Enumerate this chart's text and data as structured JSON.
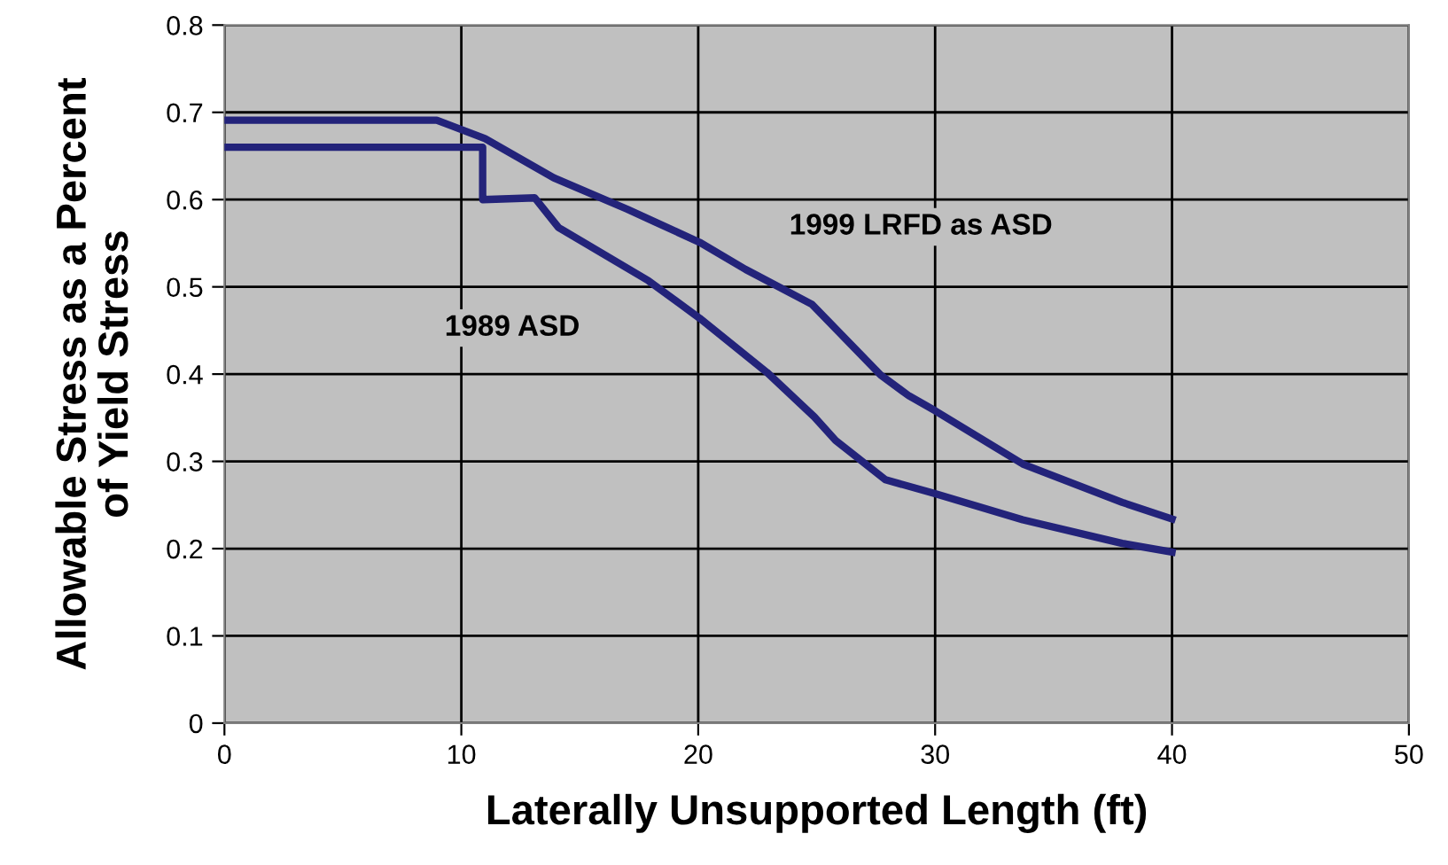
{
  "chart_data": {
    "type": "line",
    "xlabel": "Laterally Unsupported Length (ft)",
    "ylabel": "Allowable Stress as a Percent\nof Yield Stress",
    "series": [
      {
        "color": "#23237a",
        "x": [
          0,
          8.96,
          11,
          13.9,
          17,
          20.06,
          22,
          24.8,
          27.7,
          28.9,
          30,
          33.7,
          37.9,
          40
        ],
        "values": [
          0.691,
          0.691,
          0.67,
          0.625,
          0.589,
          0.551,
          0.52,
          0.48,
          0.399,
          0.375,
          0.358,
          0.297,
          0.253,
          0.234
        ]
      },
      {
        "color": "#23237a",
        "x": [
          0,
          10.9,
          10.9,
          13.1,
          14.1,
          17.9,
          20.06,
          22.9,
          24.9,
          25.8,
          27.9,
          30,
          33.7,
          37.9,
          40
        ],
        "values": [
          0.66,
          0.66,
          0.6,
          0.602,
          0.568,
          0.507,
          0.464,
          0.402,
          0.351,
          0.324,
          0.279,
          0.263,
          0.233,
          0.206,
          0.196
        ]
      }
    ],
    "annotations": [
      "1999 LRFD as ASD",
      "1989 ASD"
    ],
    "xlim": [
      0,
      50
    ],
    "xticks": [
      0,
      10,
      20,
      30,
      40,
      50
    ],
    "ylim": [
      0,
      0.8
    ],
    "yticks": [
      0,
      0.1,
      0.2,
      0.3,
      0.4,
      0.5,
      0.6,
      0.7,
      0.8
    ],
    "grid": true,
    "marker": "none",
    "line_style": "solid"
  }
}
